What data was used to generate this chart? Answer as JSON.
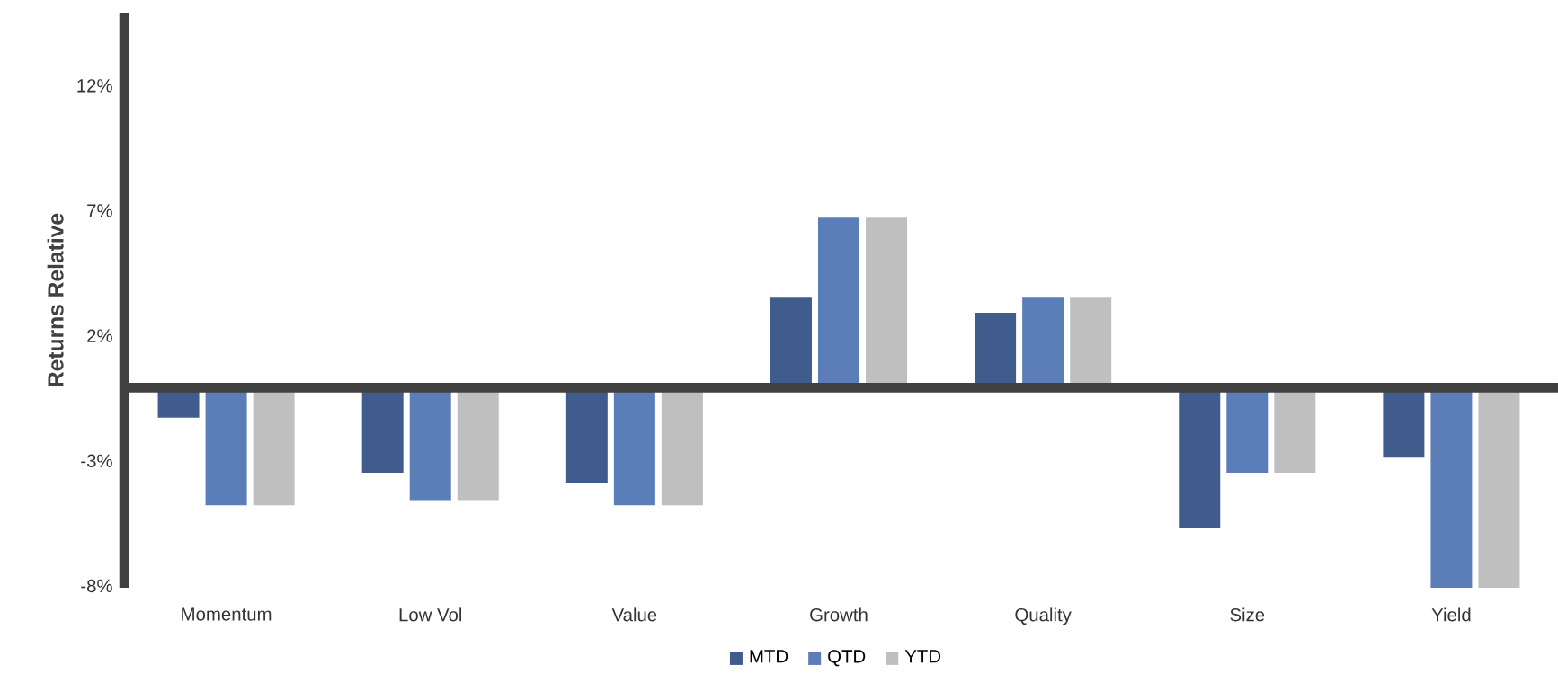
{
  "chart_data": {
    "type": "bar",
    "ylabel": "Returns Relative",
    "categories": [
      "Momentum",
      "Low Vol",
      "Value",
      "Growth",
      "Quality",
      "Size",
      "Yield"
    ],
    "series": [
      {
        "name": "MTD",
        "color": "#3f5c8c",
        "values": [
          -1.2,
          -3.4,
          -3.8,
          3.6,
          3.0,
          -5.6,
          -2.8
        ]
      },
      {
        "name": "QTD",
        "color": "#5b7db8",
        "values": [
          -4.7,
          -4.5,
          -4.7,
          6.8,
          3.6,
          -3.4,
          -8.0
        ]
      },
      {
        "name": "YTD",
        "color": "#bfbfbf",
        "values": [
          -4.7,
          -4.5,
          -4.7,
          6.8,
          3.6,
          -3.4,
          -8.0
        ]
      }
    ],
    "ylim": [
      -8,
      15
    ],
    "yticks": [
      {
        "value": 12,
        "label": "12%"
      },
      {
        "value": 7,
        "label": "7%"
      },
      {
        "value": 2,
        "label": "2%"
      },
      {
        "value": -3,
        "label": "-3%"
      },
      {
        "value": -8,
        "label": "-8%"
      }
    ],
    "grid": false,
    "legend": "bottom"
  }
}
